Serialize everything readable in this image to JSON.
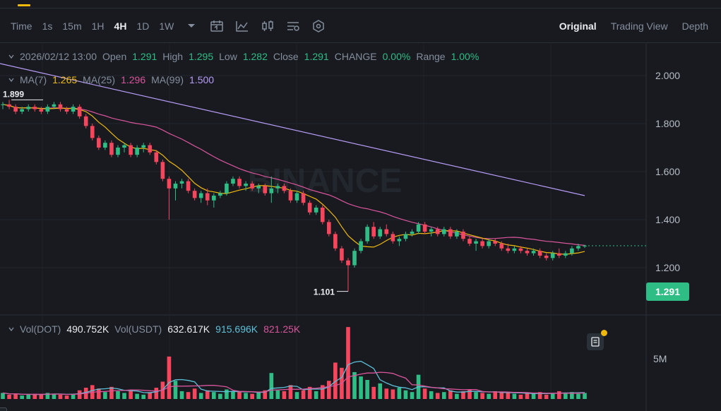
{
  "timeframes": {
    "label": "Time",
    "items": [
      "1s",
      "15m",
      "1H",
      "4H",
      "1D",
      "1W"
    ],
    "active": "4H"
  },
  "icons": [
    "dropdown-caret-icon",
    "calendar-icon",
    "line-chart-icon",
    "candlestick-icon",
    "settings-icon",
    "hexagon-icon"
  ],
  "view_modes": {
    "original": "Original",
    "trading_view": "Trading View",
    "depth": "Depth",
    "active": "Original"
  },
  "ohlc": {
    "datetime": "2026/02/12 13:00",
    "open_label": "Open",
    "open": "1.291",
    "high_label": "High",
    "high": "1.295",
    "low_label": "Low",
    "low": "1.282",
    "close_label": "Close",
    "close": "1.291",
    "change_label": "CHANGE",
    "change": "0.00%",
    "range_label": "Range",
    "range": "1.00%"
  },
  "ma": {
    "ma7_label": "MA(7)",
    "ma7": "1.265",
    "ma25_label": "MA(25)",
    "ma25": "1.296",
    "ma99_label": "MA(99)",
    "ma99": "1.500"
  },
  "volume": {
    "vol_dot_label": "Vol(DOT)",
    "vol_dot": "490.752K",
    "vol_usdt_label": "Vol(USDT)",
    "vol_usdt": "632.617K",
    "ma_a": "915.696K",
    "ma_b": "821.25K"
  },
  "price_axis": {
    "ticks": [
      "2.000",
      "1.800",
      "1.600",
      "1.400",
      "1.200"
    ],
    "current": "1.291"
  },
  "volume_axis": {
    "ticks": [
      "5M"
    ]
  },
  "markers": {
    "high": "1.899",
    "low": "1.101"
  },
  "watermark": "BINANCE",
  "colors": {
    "up": "#2ebd85",
    "down": "#f6465d",
    "ma7": "#f0b90b",
    "ma25": "#d9559b",
    "ma99": "#b69cf5",
    "vol_ma_a": "#5ec1d8",
    "vol_ma_b": "#d9559b",
    "accent": "#f0b90b"
  },
  "chart_data": {
    "type": "candlestick",
    "ylim": [
      1.05,
      2.05
    ],
    "price_range_shown": [
      1.101,
      1.899
    ],
    "candles": [
      [
        1.88,
        1.89,
        1.86,
        1.88
      ],
      [
        1.88,
        1.899,
        1.86,
        1.87
      ],
      [
        1.87,
        1.88,
        1.84,
        1.85
      ],
      [
        1.85,
        1.87,
        1.84,
        1.86
      ],
      [
        1.86,
        1.88,
        1.85,
        1.87
      ],
      [
        1.87,
        1.88,
        1.85,
        1.86
      ],
      [
        1.86,
        1.87,
        1.84,
        1.85
      ],
      [
        1.85,
        1.88,
        1.84,
        1.87
      ],
      [
        1.87,
        1.89,
        1.86,
        1.88
      ],
      [
        1.88,
        1.89,
        1.85,
        1.86
      ],
      [
        1.86,
        1.87,
        1.84,
        1.85
      ],
      [
        1.85,
        1.88,
        1.84,
        1.87
      ],
      [
        1.87,
        1.88,
        1.82,
        1.83
      ],
      [
        1.83,
        1.84,
        1.78,
        1.79
      ],
      [
        1.79,
        1.8,
        1.73,
        1.74
      ],
      [
        1.74,
        1.75,
        1.69,
        1.7
      ],
      [
        1.7,
        1.73,
        1.69,
        1.72
      ],
      [
        1.72,
        1.73,
        1.66,
        1.67
      ],
      [
        1.67,
        1.71,
        1.66,
        1.7
      ],
      [
        1.7,
        1.72,
        1.68,
        1.71
      ],
      [
        1.71,
        1.72,
        1.66,
        1.67
      ],
      [
        1.67,
        1.71,
        1.66,
        1.7
      ],
      [
        1.7,
        1.72,
        1.68,
        1.71
      ],
      [
        1.71,
        1.72,
        1.67,
        1.68
      ],
      [
        1.68,
        1.69,
        1.63,
        1.64
      ],
      [
        1.64,
        1.65,
        1.56,
        1.57
      ],
      [
        1.57,
        1.58,
        1.4,
        1.53
      ],
      [
        1.53,
        1.56,
        1.48,
        1.55
      ],
      [
        1.55,
        1.57,
        1.53,
        1.56
      ],
      [
        1.56,
        1.57,
        1.51,
        1.52
      ],
      [
        1.52,
        1.53,
        1.48,
        1.49
      ],
      [
        1.49,
        1.52,
        1.47,
        1.51
      ],
      [
        1.51,
        1.53,
        1.46,
        1.48
      ],
      [
        1.48,
        1.51,
        1.45,
        1.5
      ],
      [
        1.5,
        1.52,
        1.49,
        1.51
      ],
      [
        1.51,
        1.56,
        1.5,
        1.55
      ],
      [
        1.55,
        1.58,
        1.54,
        1.57
      ],
      [
        1.57,
        1.58,
        1.53,
        1.54
      ],
      [
        1.54,
        1.56,
        1.52,
        1.55
      ],
      [
        1.55,
        1.56,
        1.52,
        1.53
      ],
      [
        1.53,
        1.55,
        1.51,
        1.54
      ],
      [
        1.54,
        1.55,
        1.5,
        1.51
      ],
      [
        1.51,
        1.58,
        1.47,
        1.53
      ],
      [
        1.53,
        1.55,
        1.51,
        1.54
      ],
      [
        1.54,
        1.55,
        1.51,
        1.52
      ],
      [
        1.52,
        1.53,
        1.47,
        1.48
      ],
      [
        1.48,
        1.52,
        1.47,
        1.51
      ],
      [
        1.51,
        1.52,
        1.46,
        1.47
      ],
      [
        1.47,
        1.48,
        1.42,
        1.43
      ],
      [
        1.43,
        1.46,
        1.42,
        1.45
      ],
      [
        1.45,
        1.46,
        1.38,
        1.39
      ],
      [
        1.39,
        1.4,
        1.33,
        1.34
      ],
      [
        1.34,
        1.35,
        1.27,
        1.28
      ],
      [
        1.28,
        1.29,
        1.22,
        1.23
      ],
      [
        1.23,
        1.24,
        1.101,
        1.21
      ],
      [
        1.21,
        1.28,
        1.2,
        1.27
      ],
      [
        1.27,
        1.32,
        1.26,
        1.31
      ],
      [
        1.31,
        1.38,
        1.3,
        1.37
      ],
      [
        1.37,
        1.39,
        1.32,
        1.33
      ],
      [
        1.33,
        1.37,
        1.32,
        1.36
      ],
      [
        1.36,
        1.38,
        1.33,
        1.34
      ],
      [
        1.34,
        1.35,
        1.3,
        1.31
      ],
      [
        1.31,
        1.33,
        1.29,
        1.32
      ],
      [
        1.32,
        1.35,
        1.31,
        1.34
      ],
      [
        1.34,
        1.36,
        1.33,
        1.35
      ],
      [
        1.35,
        1.39,
        1.34,
        1.38
      ],
      [
        1.38,
        1.39,
        1.34,
        1.35
      ],
      [
        1.35,
        1.37,
        1.33,
        1.36
      ],
      [
        1.36,
        1.37,
        1.33,
        1.34
      ],
      [
        1.34,
        1.37,
        1.33,
        1.36
      ],
      [
        1.36,
        1.37,
        1.32,
        1.33
      ],
      [
        1.33,
        1.36,
        1.32,
        1.35
      ],
      [
        1.35,
        1.36,
        1.31,
        1.32
      ],
      [
        1.32,
        1.33,
        1.29,
        1.3
      ],
      [
        1.3,
        1.32,
        1.27,
        1.31
      ],
      [
        1.31,
        1.32,
        1.28,
        1.29
      ],
      [
        1.29,
        1.32,
        1.28,
        1.31
      ],
      [
        1.31,
        1.32,
        1.29,
        1.3
      ],
      [
        1.3,
        1.31,
        1.27,
        1.28
      ],
      [
        1.28,
        1.3,
        1.26,
        1.27
      ],
      [
        1.27,
        1.29,
        1.26,
        1.28
      ],
      [
        1.28,
        1.29,
        1.26,
        1.27
      ],
      [
        1.27,
        1.28,
        1.25,
        1.26
      ],
      [
        1.26,
        1.28,
        1.25,
        1.27
      ],
      [
        1.27,
        1.28,
        1.24,
        1.25
      ],
      [
        1.25,
        1.26,
        1.23,
        1.24
      ],
      [
        1.24,
        1.27,
        1.23,
        1.26
      ],
      [
        1.26,
        1.28,
        1.24,
        1.25
      ],
      [
        1.25,
        1.27,
        1.24,
        1.26
      ],
      [
        1.26,
        1.29,
        1.25,
        1.28
      ],
      [
        1.28,
        1.3,
        1.27,
        1.29
      ],
      [
        1.291,
        1.295,
        1.282,
        1.291
      ]
    ],
    "volumes": [
      0.7,
      0.5,
      0.6,
      0.4,
      0.5,
      0.6,
      0.5,
      0.7,
      0.6,
      0.5,
      0.4,
      0.6,
      1.0,
      1.3,
      1.6,
      1.2,
      0.8,
      1.4,
      0.9,
      0.7,
      1.0,
      0.6,
      0.5,
      0.8,
      1.3,
      2.0,
      4.9,
      2.1,
      0.9,
      0.8,
      1.2,
      0.7,
      1.0,
      0.8,
      0.6,
      1.1,
      0.9,
      0.8,
      0.7,
      0.6,
      0.8,
      1.0,
      3.0,
      1.0,
      0.9,
      1.6,
      0.8,
      1.0,
      1.4,
      0.9,
      1.6,
      2.1,
      4.2,
      3.6,
      8.3,
      3.1,
      2.6,
      2.2,
      1.4,
      1.8,
      1.2,
      1.1,
      1.3,
      1.0,
      0.8,
      2.8,
      1.2,
      0.9,
      0.7,
      0.8,
      1.0,
      0.6,
      0.9,
      1.1,
      0.8,
      0.7,
      0.6,
      0.9,
      0.8,
      0.7,
      0.6,
      0.5,
      0.7,
      0.6,
      0.8,
      0.5,
      0.6,
      0.9,
      0.7,
      0.8,
      0.6,
      0.7
    ],
    "ma99_endpoints": [
      2.05,
      1.5
    ],
    "volume_ylim": [
      0,
      8.8
    ]
  }
}
